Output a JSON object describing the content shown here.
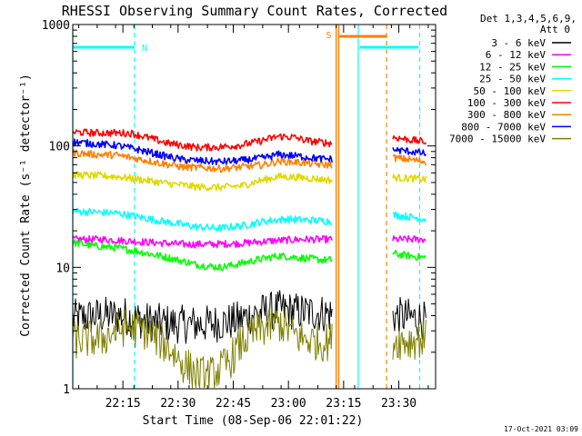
{
  "chart_data": {
    "type": "line",
    "title": "RHESSI Observing Summary Count Rates, Corrected",
    "xlabel": "Start Time (08-Sep-06 22:01:22)",
    "ylabel": "Corrected Count Rate (s⁻¹ detector⁻¹)",
    "yscale": "log",
    "ylim": [
      1,
      1000
    ],
    "xlim": [
      "22:01:22",
      "23:40:00"
    ],
    "y_ticks": [
      "1",
      "10",
      "100",
      "1000"
    ],
    "x_ticks": [
      "22:15",
      "22:30",
      "22:45",
      "23:00",
      "23:15",
      "23:30"
    ],
    "x_tick_minutes": [
      13.63,
      28.63,
      43.63,
      58.63,
      73.63,
      88.63
    ],
    "footer_date": "17-Oct-2021 03:09",
    "legend": {
      "header1": "Det 1,3,4,5,6,9,",
      "header2": "Att 0"
    },
    "series": [
      {
        "name": "3 - 6 keV",
        "color": "#000000",
        "points": [
          [
            0,
            3.8
          ],
          [
            8,
            4.0
          ],
          [
            14,
            4.0
          ],
          [
            20,
            3.6
          ],
          [
            28,
            3.4
          ],
          [
            36,
            3.4
          ],
          [
            44,
            3.6
          ],
          [
            50,
            4.2
          ],
          [
            56,
            4.5
          ],
          [
            62,
            4.3
          ],
          [
            68,
            4.2
          ],
          [
            70.5,
            4.1
          ],
          [
            87,
            4.0
          ],
          [
            94,
            3.8
          ],
          [
            96,
            3.6
          ]
        ]
      },
      {
        "name": "6 - 12 keV",
        "color": "#ff00ff",
        "points": [
          [
            0,
            17
          ],
          [
            8,
            17
          ],
          [
            15,
            16.5
          ],
          [
            22,
            16
          ],
          [
            30,
            15.5
          ],
          [
            38,
            15.5
          ],
          [
            46,
            15.8
          ],
          [
            54,
            16.5
          ],
          [
            62,
            17
          ],
          [
            70.5,
            17
          ],
          [
            87,
            17
          ],
          [
            94,
            17
          ],
          [
            96,
            17
          ]
        ]
      },
      {
        "name": "12 - 25 keV",
        "color": "#00ff00",
        "points": [
          [
            0,
            16
          ],
          [
            6,
            15
          ],
          [
            12,
            14.5
          ],
          [
            18,
            13.5
          ],
          [
            26,
            12
          ],
          [
            34,
            10.5
          ],
          [
            40,
            10
          ],
          [
            44,
            10.5
          ],
          [
            50,
            11.5
          ],
          [
            56,
            12.5
          ],
          [
            62,
            12
          ],
          [
            68,
            11.5
          ],
          [
            70.5,
            11.5
          ],
          [
            87,
            13
          ],
          [
            91,
            12.5
          ],
          [
            96,
            12
          ]
        ]
      },
      {
        "name": "25 - 50 keV",
        "color": "#00ffff",
        "points": [
          [
            0,
            29
          ],
          [
            6,
            28.5
          ],
          [
            12,
            28
          ],
          [
            18,
            26
          ],
          [
            26,
            23.5
          ],
          [
            34,
            21.5
          ],
          [
            40,
            21
          ],
          [
            46,
            22
          ],
          [
            52,
            24
          ],
          [
            58,
            25
          ],
          [
            64,
            24.5
          ],
          [
            70.5,
            24
          ],
          [
            87,
            27
          ],
          [
            92,
            26
          ],
          [
            96,
            25
          ]
        ]
      },
      {
        "name": "50 - 100 keV",
        "color": "#e0d800",
        "points": [
          [
            0,
            58
          ],
          [
            6,
            57
          ],
          [
            12,
            56
          ],
          [
            18,
            53
          ],
          [
            26,
            49
          ],
          [
            34,
            46
          ],
          [
            40,
            45.5
          ],
          [
            46,
            47
          ],
          [
            50,
            51
          ],
          [
            56,
            56
          ],
          [
            62,
            55
          ],
          [
            68,
            53
          ],
          [
            70.5,
            52
          ],
          [
            87,
            55
          ],
          [
            92,
            54
          ],
          [
            96,
            53
          ]
        ]
      },
      {
        "name": "100 - 300 keV",
        "color": "#ff0000",
        "points": [
          [
            0,
            130
          ],
          [
            6,
            128
          ],
          [
            12,
            128
          ],
          [
            16,
            127
          ],
          [
            20,
            118
          ],
          [
            26,
            105
          ],
          [
            34,
            97
          ],
          [
            40,
            98
          ],
          [
            46,
            102
          ],
          [
            50,
            108
          ],
          [
            56,
            120
          ],
          [
            60,
            118
          ],
          [
            64,
            110
          ],
          [
            70.5,
            105
          ],
          [
            87,
            118
          ],
          [
            92,
            112
          ],
          [
            96,
            108
          ]
        ]
      },
      {
        "name": "300 - 800 keV",
        "color": "#ff8000",
        "points": [
          [
            0,
            88
          ],
          [
            6,
            85
          ],
          [
            12,
            84
          ],
          [
            18,
            78
          ],
          [
            24,
            72
          ],
          [
            30,
            67
          ],
          [
            36,
            66
          ],
          [
            40,
            65
          ],
          [
            46,
            67
          ],
          [
            52,
            70
          ],
          [
            56,
            75
          ],
          [
            62,
            73
          ],
          [
            68,
            70
          ],
          [
            70.5,
            70
          ],
          [
            87,
            80
          ],
          [
            92,
            77
          ],
          [
            96,
            74
          ]
        ]
      },
      {
        "name": "800 - 7000 keV",
        "color": "#0000ff",
        "points": [
          [
            0,
            108
          ],
          [
            6,
            104
          ],
          [
            12,
            101
          ],
          [
            18,
            93
          ],
          [
            24,
            84
          ],
          [
            30,
            77
          ],
          [
            36,
            75
          ],
          [
            40,
            74
          ],
          [
            46,
            76
          ],
          [
            52,
            80
          ],
          [
            56,
            85
          ],
          [
            62,
            82
          ],
          [
            68,
            78
          ],
          [
            70.5,
            78
          ],
          [
            87,
            93
          ],
          [
            92,
            90
          ],
          [
            96,
            86
          ]
        ]
      },
      {
        "name": "7000 - 15000 keV",
        "color": "#808000",
        "points": [
          [
            0,
            2.5
          ],
          [
            8,
            2.6
          ],
          [
            14,
            3.2
          ],
          [
            20,
            3.0
          ],
          [
            26,
            2.2
          ],
          [
            30,
            1.6
          ],
          [
            34,
            1.3
          ],
          [
            38,
            1.3
          ],
          [
            42,
            1.6
          ],
          [
            46,
            2.4
          ],
          [
            50,
            3.0
          ],
          [
            56,
            3.5
          ],
          [
            62,
            2.6
          ],
          [
            68,
            2.4
          ],
          [
            70.5,
            2.5
          ],
          [
            87,
            2.5
          ],
          [
            92,
            2.5
          ],
          [
            96,
            2.6
          ]
        ]
      }
    ],
    "flag_labels": {
      "night": "N",
      "saa": "S"
    },
    "night_bar": {
      "segments": [
        [
          0,
          16.8
        ],
        [
          78,
          94
        ]
      ],
      "level": 650
    },
    "saa_bar": {
      "segments": [
        [
          72.3,
          85.3
        ]
      ],
      "level": 800
    },
    "cyan_solid_lines": [
      0,
      77.6
    ],
    "cyan_dashed_lines": [
      16.8,
      94.3
    ],
    "orange_solid_lines": [
      71.6,
      72.3
    ],
    "orange_dashed_lines": [
      85.3
    ]
  }
}
